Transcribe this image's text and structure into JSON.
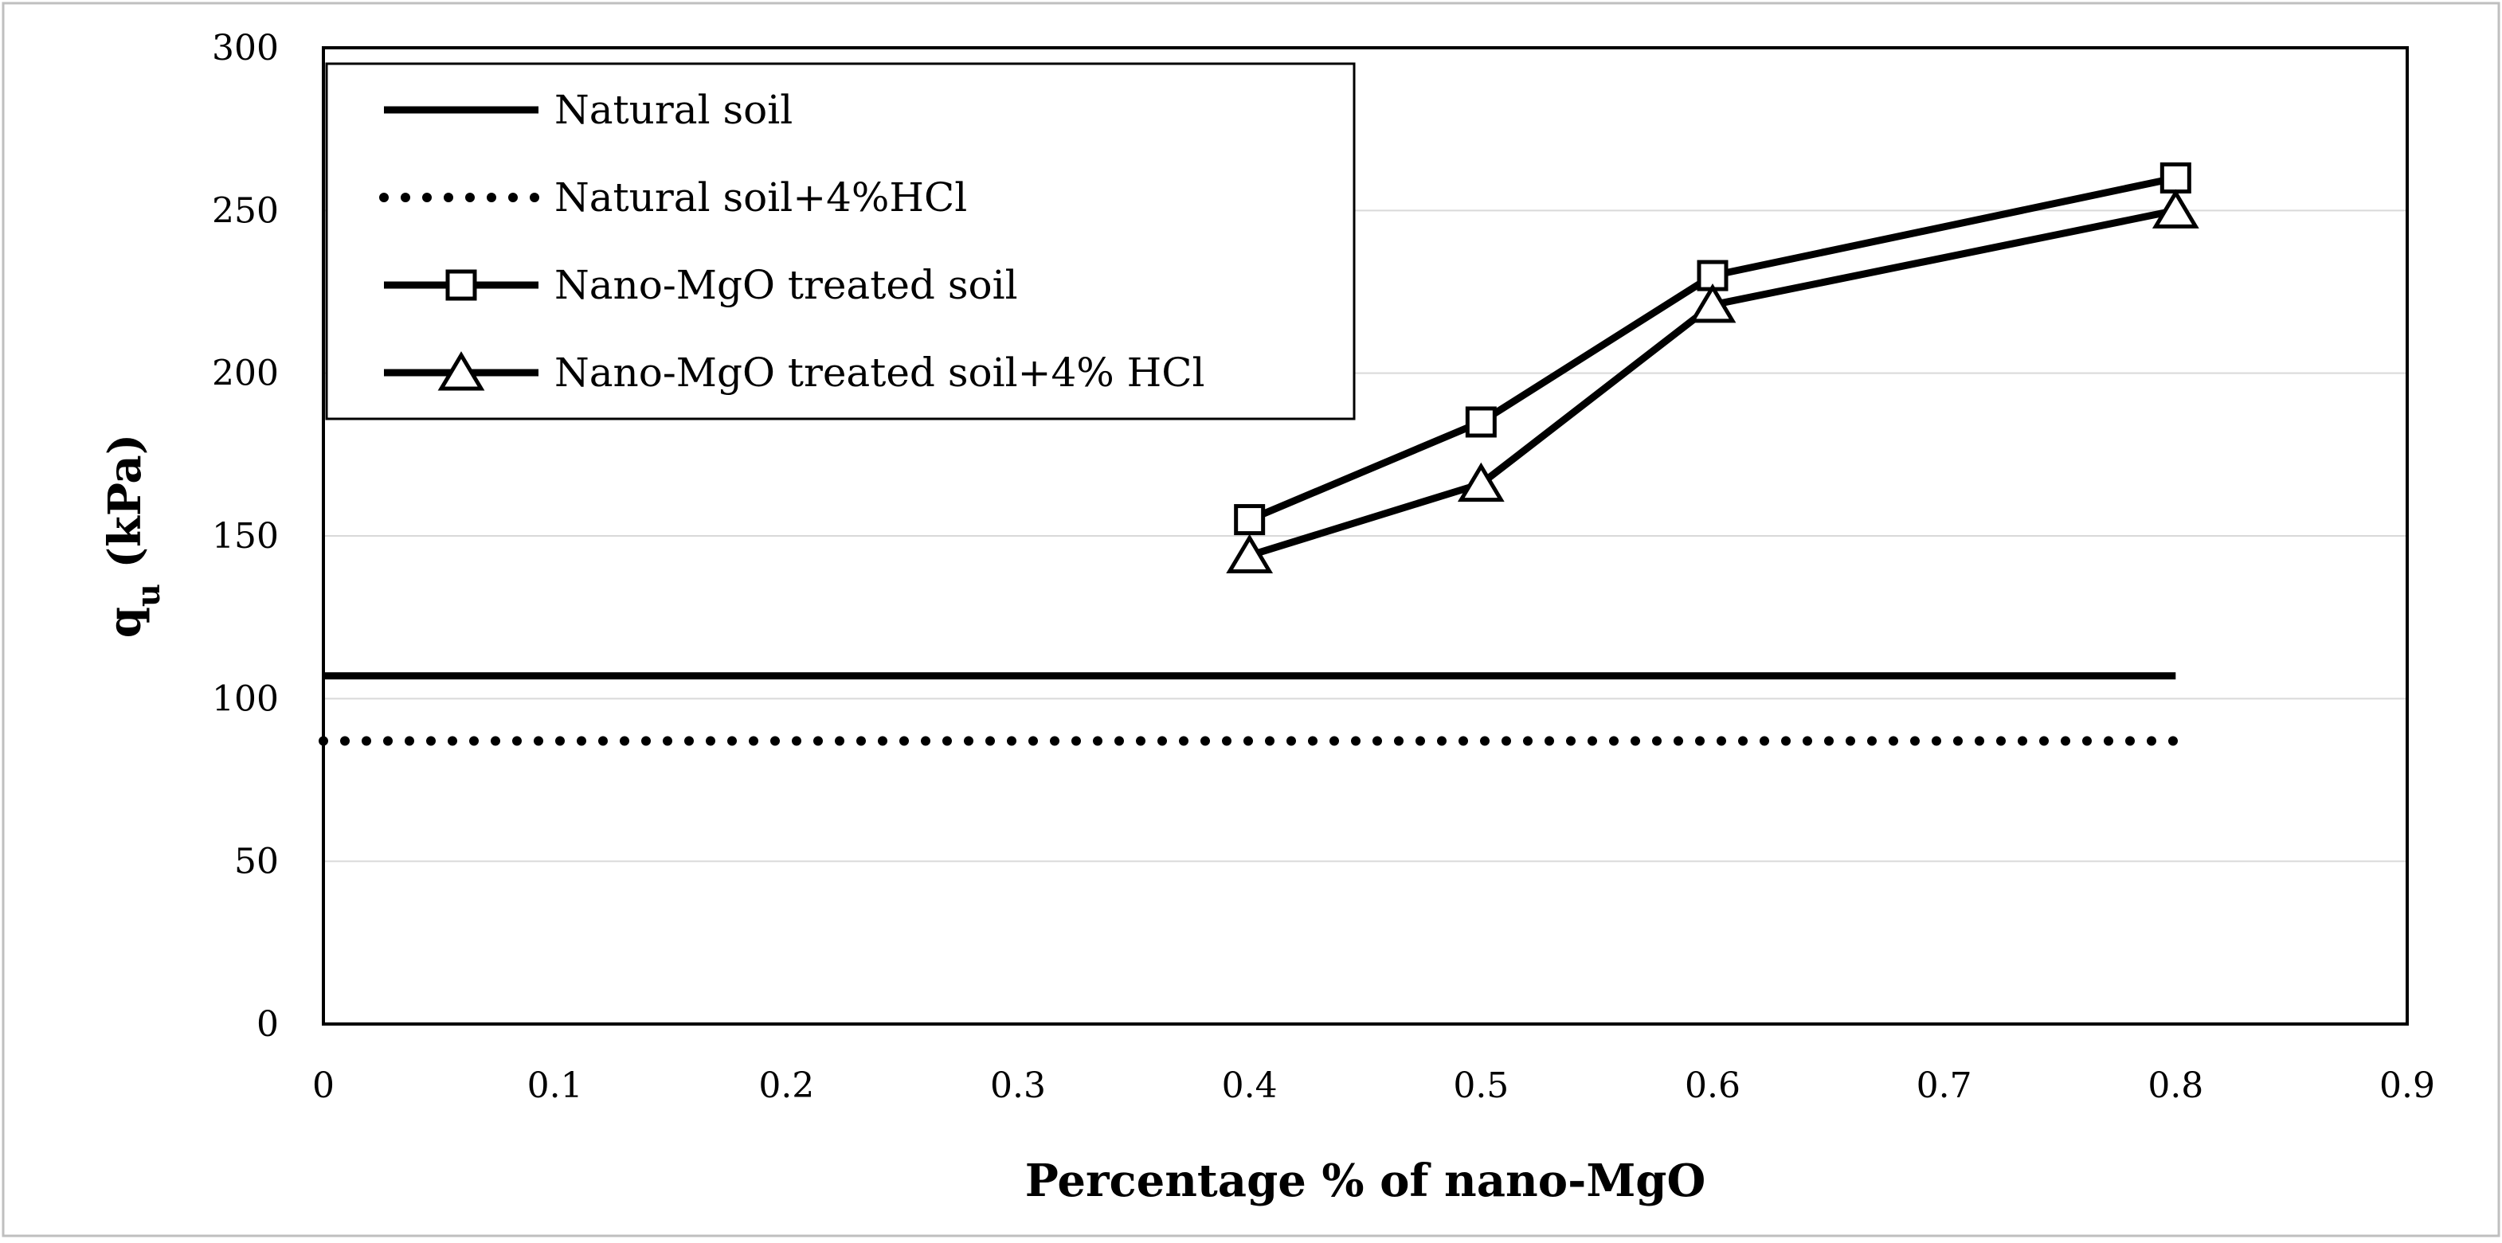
{
  "chart_data": {
    "type": "line",
    "xlabel": "Percentage % of nano-MgO",
    "ylabel": "q",
    "ylabel_sub": "u",
    "ylabel_unit": " (kPa)",
    "xlim": [
      0,
      0.9
    ],
    "ylim": [
      0,
      300
    ],
    "x_ticks": [
      "0",
      "0.1",
      "0.2",
      "0.3",
      "0.4",
      "0.5",
      "0.6",
      "0.7",
      "0.8",
      "0.9"
    ],
    "y_ticks": [
      "0",
      "50",
      "100",
      "150",
      "200",
      "250",
      "300"
    ],
    "grid": "horizontal",
    "legend_position": "top-left",
    "series": [
      {
        "name": "Natural soil",
        "style": "solid",
        "marker": "none",
        "x": [
          0,
          0.8
        ],
        "y": [
          107,
          107
        ]
      },
      {
        "name": "Natural soil+4%HCl",
        "style": "dotted",
        "marker": "none",
        "x": [
          0,
          0.8
        ],
        "y": [
          87,
          87
        ]
      },
      {
        "name": "Nano-MgO treated soil",
        "style": "solid",
        "marker": "square",
        "x": [
          0.4,
          0.5,
          0.6,
          0.8
        ],
        "y": [
          155,
          185,
          230,
          260
        ]
      },
      {
        "name": "Nano-MgO treated soil+4% HCl",
        "style": "solid",
        "marker": "triangle",
        "x": [
          0.4,
          0.5,
          0.6,
          0.8
        ],
        "y": [
          144,
          166,
          221,
          250
        ]
      }
    ],
    "colors": {
      "line": "#000000",
      "grid": "#d9d9d9",
      "background": "#ffffff"
    }
  }
}
